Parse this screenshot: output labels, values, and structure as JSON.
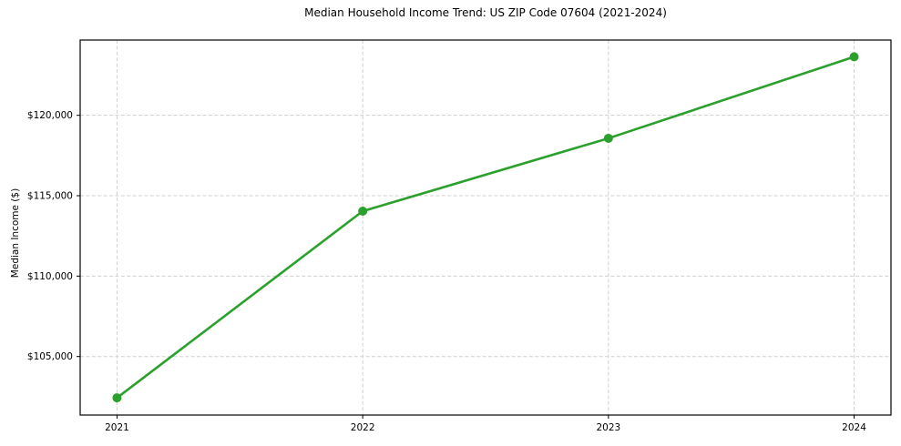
{
  "chart_data": {
    "type": "line",
    "title": "Median Household Income Trend: US ZIP Code 07604 (2021-2024)",
    "xlabel": "",
    "ylabel": "Median Income ($)",
    "x": [
      2021,
      2022,
      2023,
      2024
    ],
    "x_tick_labels": [
      "2021",
      "2022",
      "2023",
      "2024"
    ],
    "series": [
      {
        "name": "Median Household Income",
        "values": [
          102430,
          114040,
          118570,
          123640
        ]
      }
    ],
    "y_ticks": [
      105000,
      110000,
      115000,
      120000
    ],
    "y_tick_labels": [
      "$105,000",
      "$110,000",
      "$115,000",
      "$120,000"
    ],
    "xlim": [
      2020.85,
      2024.15
    ],
    "ylim": [
      101360,
      124680
    ],
    "grid": true,
    "grid_style": "dashed",
    "legend_position": "none",
    "line_color": "#2ca02c",
    "marker": "circle",
    "marker_color": "#2ca02c",
    "grid_color": "#d0d0d0",
    "axis_color": "#000000",
    "background_color": "#ffffff"
  }
}
